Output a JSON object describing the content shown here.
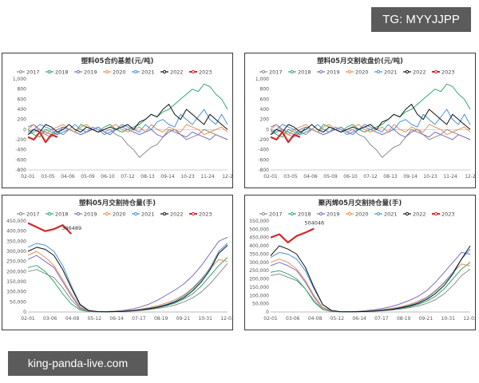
{
  "watermarks": {
    "top": "TG: MYYJJPP",
    "bottom": "king-panda-live.com"
  },
  "legend_years": [
    "2017",
    "2018",
    "2019",
    "2020",
    "2021",
    "2022",
    "2023"
  ],
  "colors": {
    "2017": "#8c8c8c",
    "2018": "#2fa86a",
    "2019": "#7b6cc4",
    "2020": "#e8914f",
    "2021": "#4a90d9",
    "2022": "#111111",
    "2023": "#d32a2a"
  },
  "chart_data": [
    {
      "type": "line",
      "title": "塑料05合约基差(元/吨)",
      "xticks": [
        "02-01",
        "03-05",
        "04-06",
        "05-09",
        "06-10",
        "07-12",
        "08-13",
        "09-14",
        "10-23",
        "11-24",
        "12-2"
      ],
      "yticks": [
        "1,000",
        "800",
        "600",
        "400",
        "200",
        "0",
        "-200",
        "-400",
        "-600",
        "-800"
      ],
      "ylim": [
        -800,
        1000
      ],
      "legend": "top",
      "series": [
        {
          "name": "2017",
          "values": [
            -100,
            -50,
            0,
            -100,
            -150,
            -50,
            -100,
            0,
            -50,
            -100,
            -50,
            0,
            50,
            -50,
            0,
            -100,
            -150,
            -300,
            -400,
            -550,
            -450,
            -350,
            -300,
            -150,
            0,
            -50,
            -100,
            -200,
            -150,
            -100,
            0,
            -50,
            -100,
            -150,
            -200
          ]
        },
        {
          "name": "2018",
          "values": [
            0,
            -100,
            -150,
            0,
            -50,
            -100,
            50,
            0,
            -50,
            100,
            50,
            0,
            -50,
            50,
            100,
            0,
            -50,
            0,
            50,
            100,
            200,
            300,
            250,
            350,
            400,
            500,
            600,
            700,
            800,
            750,
            900,
            850,
            700,
            600,
            400
          ]
        },
        {
          "name": "2019",
          "values": [
            50,
            100,
            0,
            -50,
            -100,
            0,
            50,
            0,
            -50,
            -100,
            -50,
            0,
            50,
            -50,
            -100,
            0,
            50,
            0,
            -50,
            -100,
            -50,
            0,
            -100,
            -150,
            -50,
            0,
            -100,
            -150,
            -50,
            -100,
            -150,
            -200,
            -100,
            -150,
            -200
          ]
        },
        {
          "name": "2020",
          "values": [
            0,
            100,
            -50,
            -100,
            0,
            50,
            100,
            0,
            -50,
            50,
            100,
            0,
            -50,
            0,
            50,
            100,
            0,
            -50,
            0,
            50,
            -50,
            100,
            0,
            -50,
            50,
            0,
            -50,
            100,
            50,
            0,
            -100,
            -50,
            0,
            50,
            -50
          ]
        },
        {
          "name": "2021",
          "values": [
            -50,
            0,
            100,
            50,
            0,
            -100,
            -50,
            0,
            100,
            0,
            -50,
            50,
            0,
            -100,
            -50,
            0,
            100,
            50,
            0,
            -50,
            100,
            0,
            150,
            200,
            100,
            50,
            300,
            200,
            100,
            250,
            400,
            200,
            100,
            300,
            100
          ]
        },
        {
          "name": "2022",
          "values": [
            -100,
            0,
            -50,
            100,
            50,
            -50,
            0,
            100,
            0,
            -50,
            50,
            0,
            -50,
            0,
            50,
            0,
            50,
            100,
            0,
            150,
            200,
            300,
            250,
            400,
            500,
            300,
            200,
            400,
            300,
            200,
            100,
            300,
            200,
            100,
            0
          ]
        },
        {
          "name": "2023",
          "values": [
            -150,
            -200,
            -50,
            -250,
            -100,
            -150
          ]
        }
      ]
    },
    {
      "type": "line",
      "title": "塑料05月交割收盘价(元/吨)",
      "xticks": [
        "02-01",
        "03-05",
        "04-06",
        "05-09",
        "06-10",
        "07-12",
        "08-13",
        "09-14",
        "10-23",
        "11-24",
        "12-2"
      ],
      "yticks": [
        "1,000",
        "800",
        "600",
        "400",
        "200",
        "0",
        "-200",
        "-400",
        "-600",
        "-800"
      ],
      "ylim": [
        -800,
        1000
      ],
      "legend": "top",
      "series": [
        {
          "name": "2017",
          "values": [
            -100,
            -50,
            0,
            -100,
            -150,
            -50,
            -100,
            0,
            -50,
            -100,
            -50,
            0,
            50,
            -50,
            0,
            -100,
            -150,
            -300,
            -400,
            -550,
            -450,
            -350,
            -300,
            -150,
            0,
            -50,
            -100,
            -200,
            -150,
            -100,
            0,
            -50,
            -100,
            -150,
            -200
          ]
        },
        {
          "name": "2018",
          "values": [
            0,
            -100,
            -150,
            0,
            -50,
            -100,
            50,
            0,
            -50,
            100,
            50,
            0,
            -50,
            50,
            100,
            0,
            -50,
            0,
            50,
            100,
            200,
            300,
            250,
            350,
            400,
            500,
            600,
            700,
            800,
            750,
            900,
            850,
            700,
            600,
            400
          ]
        },
        {
          "name": "2019",
          "values": [
            50,
            100,
            0,
            -50,
            -100,
            0,
            50,
            0,
            -50,
            -100,
            -50,
            0,
            50,
            -50,
            -100,
            0,
            50,
            0,
            -50,
            -100,
            -50,
            0,
            -100,
            -150,
            -50,
            0,
            -100,
            -150,
            -50,
            -100,
            -150,
            -200,
            -100,
            -150,
            -200
          ]
        },
        {
          "name": "2020",
          "values": [
            0,
            100,
            -50,
            -100,
            0,
            50,
            100,
            0,
            -50,
            50,
            100,
            0,
            -50,
            0,
            50,
            100,
            0,
            -50,
            0,
            50,
            -50,
            100,
            0,
            -50,
            50,
            0,
            -50,
            100,
            50,
            0,
            -100,
            -50,
            0,
            50,
            -50
          ]
        },
        {
          "name": "2021",
          "values": [
            -50,
            0,
            100,
            50,
            0,
            -100,
            -50,
            0,
            100,
            0,
            -50,
            50,
            0,
            -100,
            -50,
            0,
            100,
            50,
            0,
            -50,
            100,
            0,
            150,
            200,
            100,
            50,
            300,
            200,
            100,
            250,
            400,
            200,
            100,
            300,
            100
          ]
        },
        {
          "name": "2022",
          "values": [
            -100,
            0,
            -50,
            100,
            50,
            -50,
            0,
            100,
            0,
            -50,
            50,
            0,
            -50,
            0,
            50,
            0,
            50,
            100,
            0,
            150,
            200,
            300,
            250,
            400,
            500,
            300,
            200,
            400,
            300,
            200,
            100,
            300,
            200,
            100,
            0
          ]
        },
        {
          "name": "2023",
          "values": [
            -150,
            -200,
            -50,
            -250,
            -100,
            -150
          ]
        }
      ]
    },
    {
      "type": "line",
      "title": "塑料05月交割持仓量(手)",
      "xticks": [
        "02-01",
        "03-06",
        "04-08",
        "05-12",
        "06-14",
        "07-17",
        "08-19",
        "09-21",
        "10-31",
        "12-03"
      ],
      "yticks": [
        "450,000",
        "400,000",
        "350,000",
        "300,000",
        "250,000",
        "200,000",
        "150,000",
        "100,000",
        "50,000",
        "0"
      ],
      "ylim": [
        0,
        450000
      ],
      "legend": "top",
      "annotation": {
        "text": "386489",
        "series": "2023"
      },
      "series": [
        {
          "name": "2017",
          "values": [
            200000,
            210000,
            190000,
            170000,
            120000,
            60000,
            15000,
            3000,
            1000,
            1000,
            2000,
            3000,
            5000,
            8000,
            12000,
            18000,
            25000,
            35000,
            50000,
            70000,
            100000,
            140000,
            190000,
            240000
          ]
        },
        {
          "name": "2018",
          "values": [
            220000,
            230000,
            200000,
            150000,
            90000,
            40000,
            10000,
            2000,
            1000,
            1000,
            2000,
            3000,
            6000,
            10000,
            15000,
            22000,
            32000,
            45000,
            65000,
            90000,
            130000,
            180000,
            230000,
            270000
          ]
        },
        {
          "name": "2019",
          "values": [
            260000,
            280000,
            250000,
            220000,
            150000,
            80000,
            20000,
            5000,
            2000,
            2000,
            4000,
            8000,
            15000,
            25000,
            40000,
            60000,
            85000,
            110000,
            140000,
            180000,
            230000,
            290000,
            350000,
            370000
          ]
        },
        {
          "name": "2020",
          "values": [
            280000,
            300000,
            270000,
            230000,
            160000,
            90000,
            25000,
            6000,
            2000,
            2000,
            3000,
            5000,
            9000,
            15000,
            22000,
            32000,
            45000,
            62000,
            85000,
            120000,
            165000,
            215000,
            260000,
            250000
          ]
        },
        {
          "name": "2021",
          "values": [
            320000,
            340000,
            330000,
            300000,
            230000,
            130000,
            40000,
            8000,
            2000,
            1000,
            2000,
            4000,
            7000,
            12000,
            18000,
            26000,
            38000,
            55000,
            80000,
            115000,
            160000,
            220000,
            300000,
            340000
          ]
        },
        {
          "name": "2022",
          "values": [
            300000,
            320000,
            310000,
            280000,
            210000,
            120000,
            35000,
            7000,
            2000,
            1000,
            2000,
            3000,
            6000,
            10000,
            16000,
            24000,
            35000,
            50000,
            72000,
            105000,
            150000,
            210000,
            290000,
            330000
          ]
        },
        {
          "name": "2023",
          "values": [
            440000,
            420000,
            400000,
            410000,
            430000,
            386489
          ]
        }
      ]
    },
    {
      "type": "line",
      "title": "聚丙烯05月交割持仓量(手)",
      "xticks": [
        "02-01",
        "03-06",
        "04-08",
        "05-12",
        "06-14",
        "07-17",
        "08-19",
        "09-21",
        "10-31",
        "12-03"
      ],
      "yticks": [
        "550,000",
        "500,000",
        "450,000",
        "400,000",
        "350,000",
        "300,000",
        "250,000",
        "200,000",
        "150,000",
        "100,000",
        "50,000",
        "0"
      ],
      "ylim": [
        0,
        550000
      ],
      "legend": "top",
      "annotation": {
        "text": "504046",
        "series": "2023"
      },
      "series": [
        {
          "name": "2017",
          "values": [
            220000,
            230000,
            210000,
            190000,
            140000,
            70000,
            18000,
            4000,
            1000,
            1000,
            2000,
            3000,
            5000,
            8000,
            12000,
            18000,
            26000,
            36000,
            52000,
            75000,
            110000,
            160000,
            220000,
            260000
          ]
        },
        {
          "name": "2018",
          "values": [
            240000,
            250000,
            230000,
            200000,
            140000,
            60000,
            15000,
            3000,
            1000,
            1000,
            2000,
            3000,
            6000,
            10000,
            15000,
            22000,
            32000,
            46000,
            66000,
            95000,
            140000,
            200000,
            260000,
            300000
          ]
        },
        {
          "name": "2019",
          "values": [
            280000,
            300000,
            280000,
            250000,
            180000,
            90000,
            25000,
            6000,
            2000,
            2000,
            4000,
            8000,
            14000,
            22000,
            34000,
            50000,
            70000,
            95000,
            130000,
            180000,
            240000,
            300000,
            360000,
            350000
          ]
        },
        {
          "name": "2020",
          "values": [
            300000,
            320000,
            300000,
            260000,
            190000,
            100000,
            28000,
            7000,
            2000,
            2000,
            3000,
            5000,
            9000,
            15000,
            22000,
            32000,
            46000,
            65000,
            90000,
            130000,
            180000,
            240000,
            290000,
            280000
          ]
        },
        {
          "name": "2021",
          "values": [
            330000,
            360000,
            350000,
            320000,
            250000,
            140000,
            45000,
            9000,
            2000,
            1000,
            2000,
            4000,
            7000,
            12000,
            18000,
            27000,
            40000,
            58000,
            85000,
            125000,
            175000,
            240000,
            320000,
            380000
          ]
        },
        {
          "name": "2022",
          "values": [
            340000,
            400000,
            380000,
            350000,
            270000,
            150000,
            45000,
            9000,
            2000,
            1000,
            2000,
            3000,
            6000,
            10000,
            16000,
            25000,
            36000,
            52000,
            76000,
            112000,
            160000,
            230000,
            320000,
            400000
          ]
        },
        {
          "name": "2023",
          "values": [
            450000,
            470000,
            420000,
            460000,
            480000,
            504046
          ]
        }
      ]
    }
  ]
}
